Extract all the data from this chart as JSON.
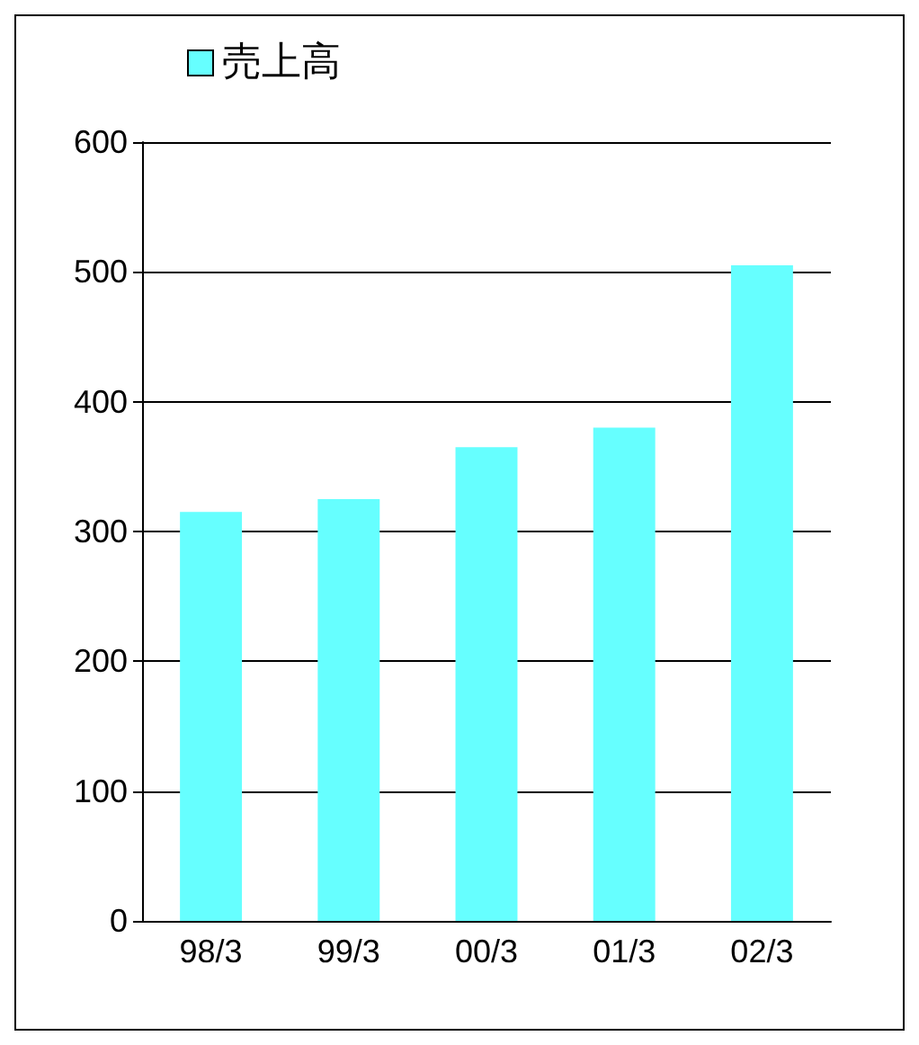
{
  "chart_data": {
    "type": "bar",
    "categories": [
      "98/3",
      "99/3",
      "00/3",
      "01/3",
      "02/3"
    ],
    "series": [
      {
        "name": "売上高",
        "color": "#66ffff",
        "values": [
          315,
          325,
          365,
          380,
          505
        ]
      }
    ],
    "ylim": [
      0,
      600
    ],
    "yticks": [
      0,
      100,
      200,
      300,
      400,
      500,
      600
    ],
    "grid": "y",
    "legend": "top left"
  }
}
